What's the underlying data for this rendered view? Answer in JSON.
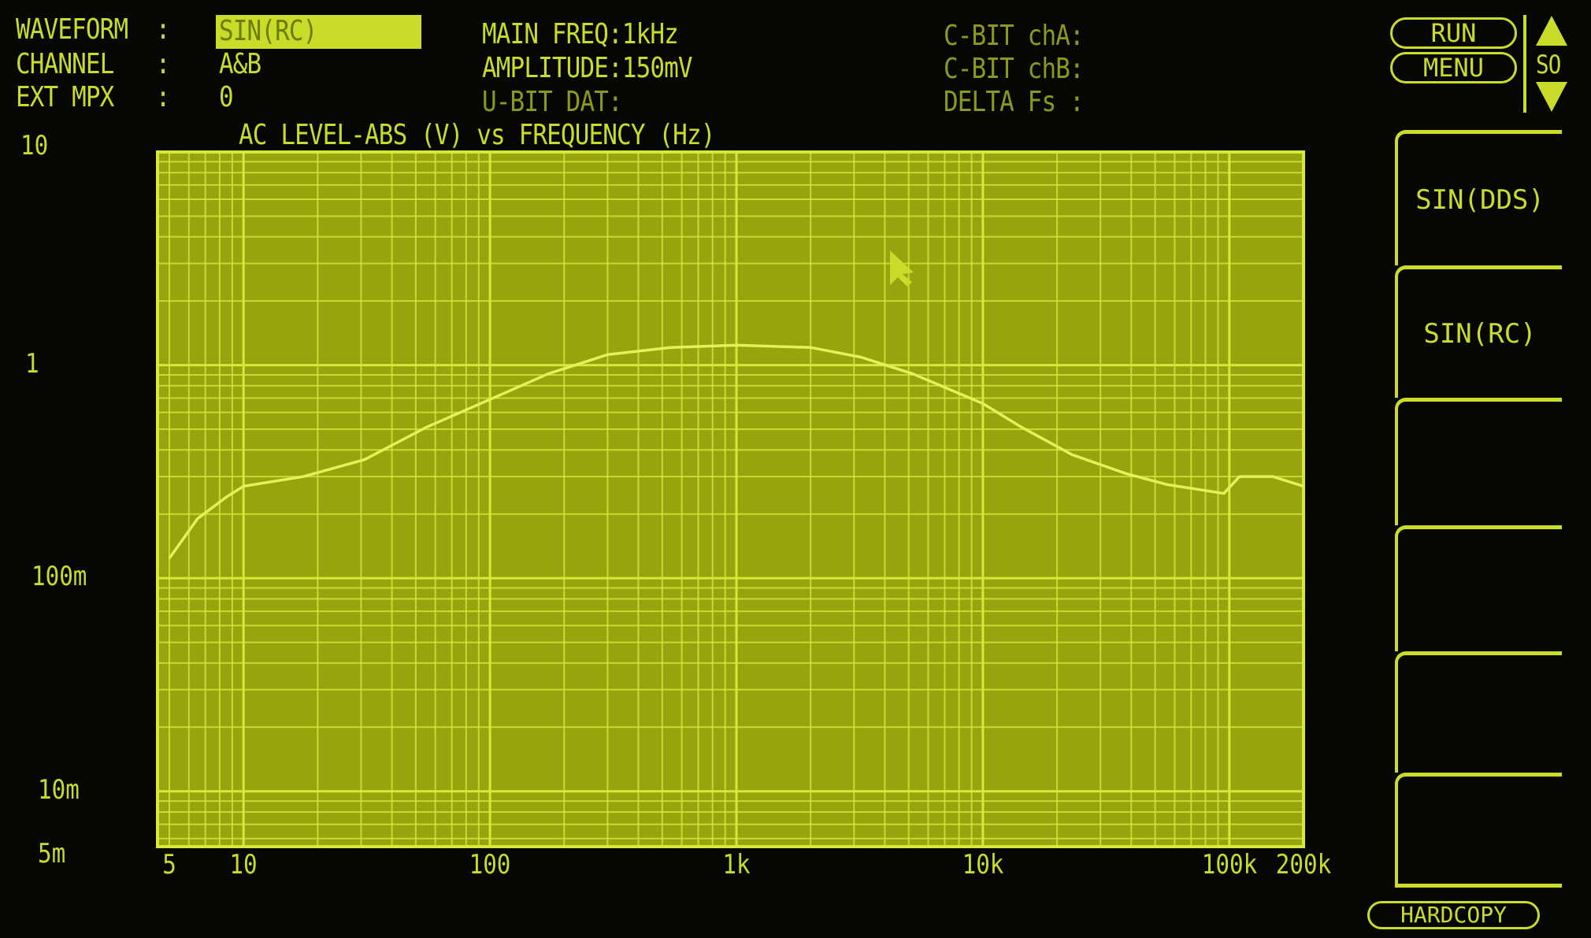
{
  "header": {
    "waveform_label": "WAVEFORM  :",
    "waveform_value": "SIN(RC)",
    "channel_label": "CHANNEL   :",
    "channel_value": "A&B",
    "ext_mpx_label": "EXT MPX   :",
    "ext_mpx_value": "0",
    "main_freq": "MAIN FREQ:1kHz",
    "amplitude": "AMPLITUDE:150mV",
    "u_bit": "U-BIT DAT:",
    "c_bit_a": "C-BIT chA:",
    "c_bit_b": "C-BIT chB:",
    "delta_fs": "DELTA Fs :"
  },
  "controls": {
    "run": "RUN",
    "menu": "MENU",
    "scroll_label": "SO",
    "hardcopy": "HARDCOPY",
    "softkeys": [
      "SIN(DDS)",
      "SIN(RC)",
      "",
      "",
      "",
      ""
    ]
  },
  "colors": {
    "phosphor": "#c9dc2a",
    "plot_bg": "#97a40e",
    "grid": "#d6e83a",
    "trace": "#e4f25a"
  },
  "chart_data": {
    "type": "line",
    "title": "AC LEVEL-ABS (V) vs FREQUENCY (Hz)",
    "x_scale": "log",
    "y_scale": "log",
    "xlim": [
      5,
      200000
    ],
    "ylim": [
      0.0055,
      10
    ],
    "grid": true,
    "x_ticks": [
      {
        "v": 5,
        "label": "5"
      },
      {
        "v": 10,
        "label": "10"
      },
      {
        "v": 100,
        "label": "100"
      },
      {
        "v": 1000,
        "label": "1k"
      },
      {
        "v": 10000,
        "label": "10k"
      },
      {
        "v": 100000,
        "label": "100k"
      },
      {
        "v": 200000,
        "label": "200k"
      }
    ],
    "y_ticks": [
      {
        "v": 10,
        "label": "10"
      },
      {
        "v": 1,
        "label": "1"
      },
      {
        "v": 0.1,
        "label": "100m"
      },
      {
        "v": 0.01,
        "label": "10m"
      },
      {
        "v": 0.005,
        "label": "5m"
      }
    ],
    "x": [
      5,
      6.5,
      8.5,
      10,
      17.5,
      31,
      55,
      100,
      172,
      300,
      540,
      1000,
      2000,
      3200,
      5200,
      10000,
      14400,
      23000,
      38000,
      56000,
      95000,
      110000,
      150000,
      200000
    ],
    "y": [
      0.124,
      0.19,
      0.24,
      0.27,
      0.3,
      0.36,
      0.51,
      0.69,
      0.91,
      1.12,
      1.21,
      1.24,
      1.21,
      1.09,
      0.91,
      0.66,
      0.51,
      0.38,
      0.31,
      0.275,
      0.25,
      0.3,
      0.3,
      0.27
    ]
  }
}
